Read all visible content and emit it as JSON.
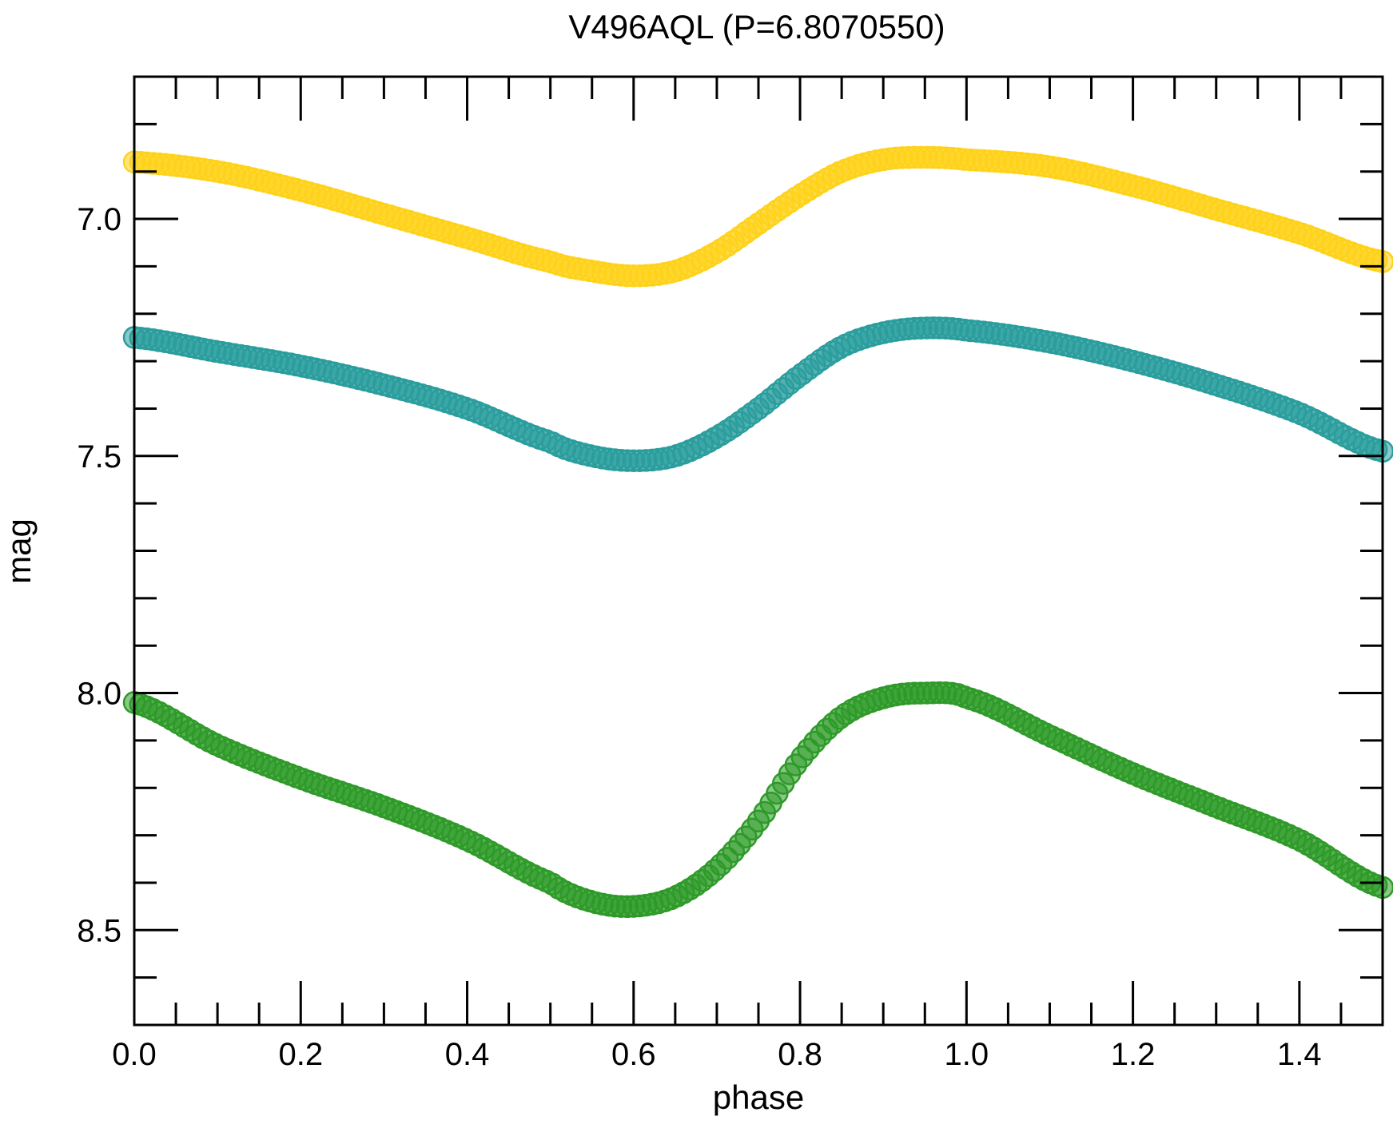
{
  "chart_data": {
    "type": "scatter",
    "title": "V496AQL (P=6.8070550)",
    "xlabel": "phase",
    "ylabel": "mag",
    "xlim": [
      0.0,
      1.5
    ],
    "ylim": [
      8.7,
      6.7
    ],
    "y_inverted": true,
    "x_ticks": [
      "0.0",
      "0.2",
      "0.4",
      "0.6",
      "0.8",
      "1.0",
      "1.2",
      "1.4"
    ],
    "y_ticks": [
      "7.0",
      "7.5",
      "8.0",
      "8.5"
    ],
    "legend": "none",
    "grid": false,
    "series": [
      {
        "color": "#FFD21A",
        "x": [
          0.0,
          0.1,
          0.2,
          0.3,
          0.4,
          0.5,
          0.55,
          0.6,
          0.65,
          0.7,
          0.75,
          0.8,
          0.85,
          0.9,
          0.95,
          1.0,
          1.1,
          1.2,
          1.3,
          1.4,
          1.5
        ],
        "y": [
          6.88,
          6.9,
          6.94,
          6.99,
          7.04,
          7.09,
          7.11,
          7.12,
          7.11,
          7.07,
          7.01,
          6.95,
          6.9,
          6.875,
          6.87,
          6.875,
          6.89,
          6.93,
          6.98,
          7.03,
          7.09
        ]
      },
      {
        "color": "#2A9D9D",
        "x": [
          0.0,
          0.1,
          0.2,
          0.3,
          0.4,
          0.5,
          0.55,
          0.6,
          0.65,
          0.7,
          0.75,
          0.8,
          0.85,
          0.9,
          0.95,
          1.0,
          1.1,
          1.2,
          1.3,
          1.4,
          1.5
        ],
        "y": [
          7.25,
          7.28,
          7.31,
          7.35,
          7.4,
          7.47,
          7.5,
          7.51,
          7.5,
          7.46,
          7.4,
          7.33,
          7.27,
          7.24,
          7.23,
          7.235,
          7.26,
          7.3,
          7.35,
          7.41,
          7.49
        ]
      },
      {
        "color": "#2E9A28",
        "x": [
          0.0,
          0.1,
          0.2,
          0.3,
          0.4,
          0.5,
          0.55,
          0.6,
          0.65,
          0.7,
          0.75,
          0.8,
          0.85,
          0.9,
          0.95,
          1.0,
          1.1,
          1.2,
          1.3,
          1.4,
          1.5
        ],
        "y": [
          8.02,
          8.11,
          8.18,
          8.24,
          8.31,
          8.4,
          8.44,
          8.45,
          8.43,
          8.37,
          8.27,
          8.14,
          8.05,
          8.01,
          8.0,
          8.01,
          8.09,
          8.17,
          8.24,
          8.31,
          8.41
        ]
      }
    ]
  }
}
